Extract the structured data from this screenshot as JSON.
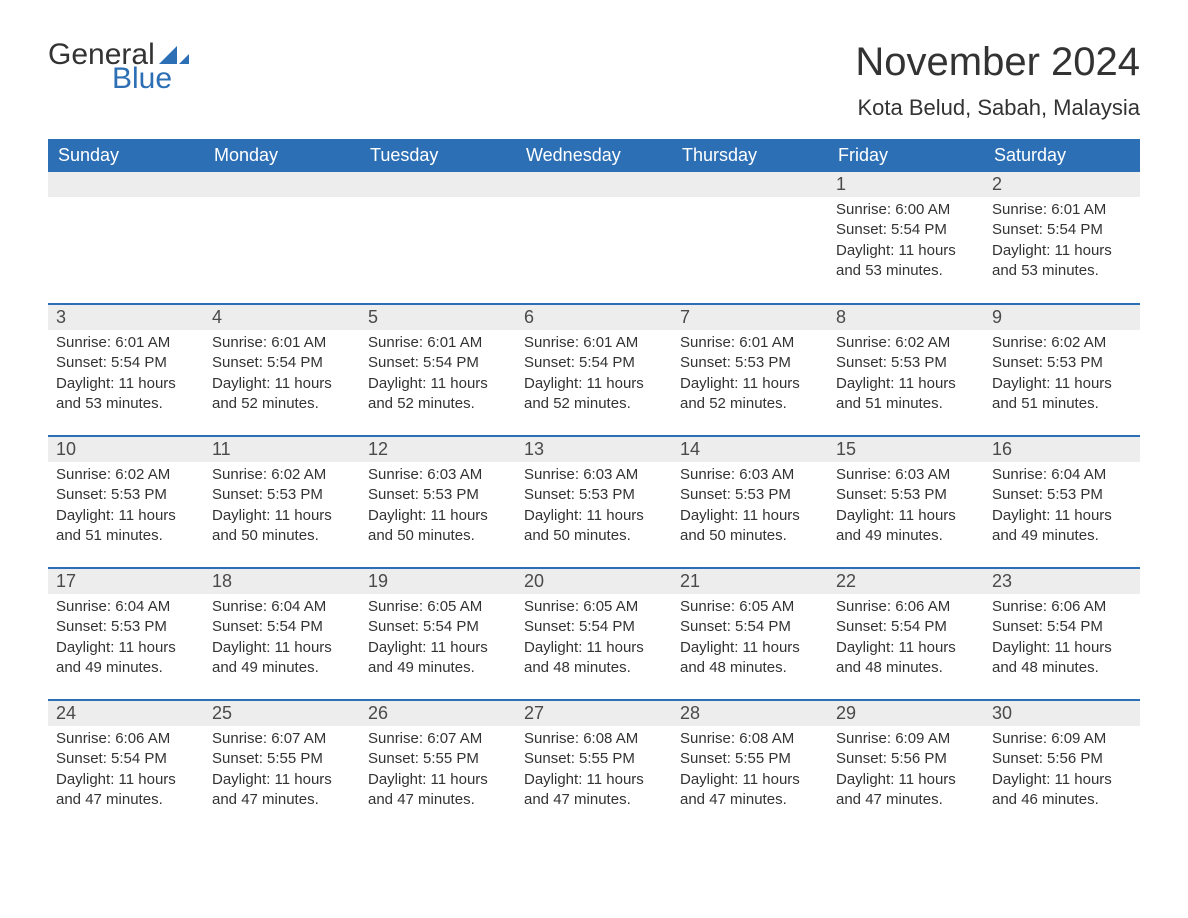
{
  "brand": {
    "part1": "General",
    "part2": "Blue",
    "flag_color": "#2d6fb5"
  },
  "title": {
    "month_year": "November 2024",
    "location": "Kota Belud, Sabah, Malaysia"
  },
  "colors": {
    "header_bg": "#2d6fb5",
    "header_text": "#ffffff",
    "daynum_bg": "#ededed",
    "row_border": "#2d6fb5",
    "body_text": "#333333",
    "page_bg": "#ffffff"
  },
  "typography": {
    "title_fontsize": 40,
    "location_fontsize": 22,
    "dayheader_fontsize": 18,
    "daynum_fontsize": 18,
    "body_fontsize": 15
  },
  "layout": {
    "columns": 7,
    "rows": 5,
    "first_day_column_index": 5
  },
  "day_headers": [
    "Sunday",
    "Monday",
    "Tuesday",
    "Wednesday",
    "Thursday",
    "Friday",
    "Saturday"
  ],
  "days": [
    {
      "n": 1,
      "sunrise": "6:00 AM",
      "sunset": "5:54 PM",
      "daylight": "11 hours and 53 minutes."
    },
    {
      "n": 2,
      "sunrise": "6:01 AM",
      "sunset": "5:54 PM",
      "daylight": "11 hours and 53 minutes."
    },
    {
      "n": 3,
      "sunrise": "6:01 AM",
      "sunset": "5:54 PM",
      "daylight": "11 hours and 53 minutes."
    },
    {
      "n": 4,
      "sunrise": "6:01 AM",
      "sunset": "5:54 PM",
      "daylight": "11 hours and 52 minutes."
    },
    {
      "n": 5,
      "sunrise": "6:01 AM",
      "sunset": "5:54 PM",
      "daylight": "11 hours and 52 minutes."
    },
    {
      "n": 6,
      "sunrise": "6:01 AM",
      "sunset": "5:54 PM",
      "daylight": "11 hours and 52 minutes."
    },
    {
      "n": 7,
      "sunrise": "6:01 AM",
      "sunset": "5:53 PM",
      "daylight": "11 hours and 52 minutes."
    },
    {
      "n": 8,
      "sunrise": "6:02 AM",
      "sunset": "5:53 PM",
      "daylight": "11 hours and 51 minutes."
    },
    {
      "n": 9,
      "sunrise": "6:02 AM",
      "sunset": "5:53 PM",
      "daylight": "11 hours and 51 minutes."
    },
    {
      "n": 10,
      "sunrise": "6:02 AM",
      "sunset": "5:53 PM",
      "daylight": "11 hours and 51 minutes."
    },
    {
      "n": 11,
      "sunrise": "6:02 AM",
      "sunset": "5:53 PM",
      "daylight": "11 hours and 50 minutes."
    },
    {
      "n": 12,
      "sunrise": "6:03 AM",
      "sunset": "5:53 PM",
      "daylight": "11 hours and 50 minutes."
    },
    {
      "n": 13,
      "sunrise": "6:03 AM",
      "sunset": "5:53 PM",
      "daylight": "11 hours and 50 minutes."
    },
    {
      "n": 14,
      "sunrise": "6:03 AM",
      "sunset": "5:53 PM",
      "daylight": "11 hours and 50 minutes."
    },
    {
      "n": 15,
      "sunrise": "6:03 AM",
      "sunset": "5:53 PM",
      "daylight": "11 hours and 49 minutes."
    },
    {
      "n": 16,
      "sunrise": "6:04 AM",
      "sunset": "5:53 PM",
      "daylight": "11 hours and 49 minutes."
    },
    {
      "n": 17,
      "sunrise": "6:04 AM",
      "sunset": "5:53 PM",
      "daylight": "11 hours and 49 minutes."
    },
    {
      "n": 18,
      "sunrise": "6:04 AM",
      "sunset": "5:54 PM",
      "daylight": "11 hours and 49 minutes."
    },
    {
      "n": 19,
      "sunrise": "6:05 AM",
      "sunset": "5:54 PM",
      "daylight": "11 hours and 49 minutes."
    },
    {
      "n": 20,
      "sunrise": "6:05 AM",
      "sunset": "5:54 PM",
      "daylight": "11 hours and 48 minutes."
    },
    {
      "n": 21,
      "sunrise": "6:05 AM",
      "sunset": "5:54 PM",
      "daylight": "11 hours and 48 minutes."
    },
    {
      "n": 22,
      "sunrise": "6:06 AM",
      "sunset": "5:54 PM",
      "daylight": "11 hours and 48 minutes."
    },
    {
      "n": 23,
      "sunrise": "6:06 AM",
      "sunset": "5:54 PM",
      "daylight": "11 hours and 48 minutes."
    },
    {
      "n": 24,
      "sunrise": "6:06 AM",
      "sunset": "5:54 PM",
      "daylight": "11 hours and 47 minutes."
    },
    {
      "n": 25,
      "sunrise": "6:07 AM",
      "sunset": "5:55 PM",
      "daylight": "11 hours and 47 minutes."
    },
    {
      "n": 26,
      "sunrise": "6:07 AM",
      "sunset": "5:55 PM",
      "daylight": "11 hours and 47 minutes."
    },
    {
      "n": 27,
      "sunrise": "6:08 AM",
      "sunset": "5:55 PM",
      "daylight": "11 hours and 47 minutes."
    },
    {
      "n": 28,
      "sunrise": "6:08 AM",
      "sunset": "5:55 PM",
      "daylight": "11 hours and 47 minutes."
    },
    {
      "n": 29,
      "sunrise": "6:09 AM",
      "sunset": "5:56 PM",
      "daylight": "11 hours and 47 minutes."
    },
    {
      "n": 30,
      "sunrise": "6:09 AM",
      "sunset": "5:56 PM",
      "daylight": "11 hours and 46 minutes."
    }
  ],
  "labels": {
    "sunrise": "Sunrise:",
    "sunset": "Sunset:",
    "daylight": "Daylight:"
  }
}
